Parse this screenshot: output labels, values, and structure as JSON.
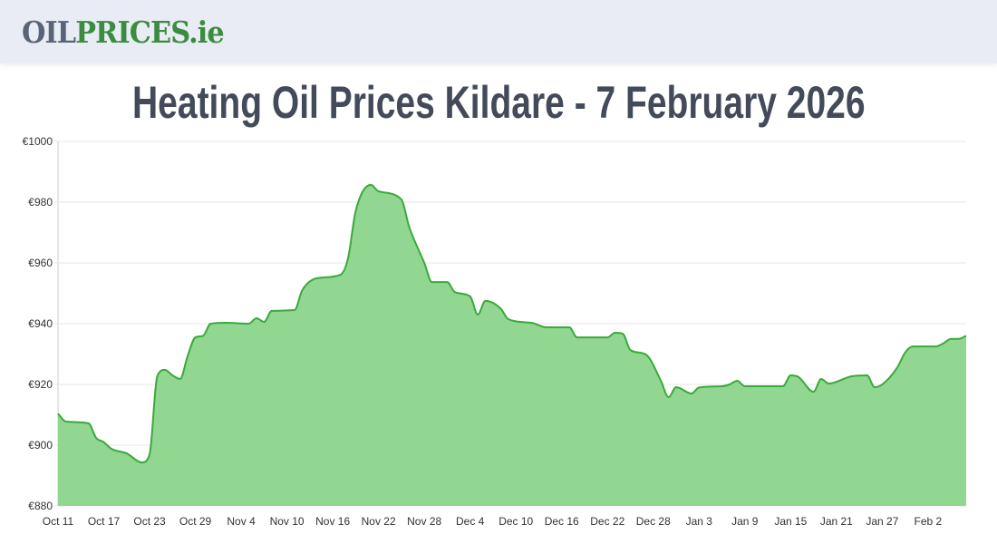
{
  "header": {
    "logo_part1": "OIL",
    "logo_part2": "PRICES.ie"
  },
  "title": "Heating Oil Prices Kildare - 7 February 2026",
  "colors": {
    "line": "#3aaa3a",
    "fill": "#91d691",
    "grid": "#e6e6e6"
  },
  "chart_data": {
    "type": "area",
    "title": "Heating Oil Prices Kildare - 7 February 2026",
    "xlabel": "",
    "ylabel": "",
    "ylim": [
      880,
      1000
    ],
    "xlim": [
      "2025-10-11",
      "2026-02-07"
    ],
    "grid": true,
    "y_ticks": [
      "€880",
      "€900",
      "€920",
      "€940",
      "€960",
      "€980",
      "€1000"
    ],
    "y_tick_values": [
      880,
      900,
      920,
      940,
      960,
      980,
      1000
    ],
    "x_ticks": [
      "Oct 11",
      "Oct 17",
      "Oct 23",
      "Oct 29",
      "Nov 4",
      "Nov 10",
      "Nov 16",
      "Nov 22",
      "Nov 28",
      "Dec 4",
      "Dec 10",
      "Dec 16",
      "Dec 22",
      "Dec 28",
      "Jan 3",
      "Jan 9",
      "Jan 15",
      "Jan 21",
      "Jan 27",
      "Feb 2"
    ],
    "x_tick_dates": [
      "2025-10-11",
      "2025-10-17",
      "2025-10-23",
      "2025-10-29",
      "2025-11-04",
      "2025-11-10",
      "2025-11-16",
      "2025-11-22",
      "2025-11-28",
      "2025-12-04",
      "2025-12-10",
      "2025-12-16",
      "2025-12-22",
      "2025-12-28",
      "2026-01-03",
      "2026-01-09",
      "2026-01-15",
      "2026-01-21",
      "2026-01-27",
      "2026-02-02"
    ],
    "points": [
      [
        "2025-10-11",
        910.4
      ],
      [
        "2025-10-12",
        907.8
      ],
      [
        "2025-10-15",
        907.2
      ],
      [
        "2025-10-16",
        902.4
      ],
      [
        "2025-10-17",
        901
      ],
      [
        "2025-10-18",
        898.8
      ],
      [
        "2025-10-20",
        897.3
      ],
      [
        "2025-10-22",
        894.3
      ],
      [
        "2025-10-23",
        897
      ],
      [
        "2025-10-24",
        922.7
      ],
      [
        "2025-10-25",
        924.8
      ],
      [
        "2025-10-26",
        923
      ],
      [
        "2025-10-27",
        921.8
      ],
      [
        "2025-10-28",
        929.5
      ],
      [
        "2025-10-29",
        935.5
      ],
      [
        "2025-10-30",
        936
      ],
      [
        "2025-10-31",
        940
      ],
      [
        "2025-11-02",
        940.3
      ],
      [
        "2025-11-05",
        940
      ],
      [
        "2025-11-06",
        941.8
      ],
      [
        "2025-11-07",
        940.6
      ],
      [
        "2025-11-08",
        944.2
      ],
      [
        "2025-11-11",
        944.5
      ],
      [
        "2025-11-12",
        951
      ],
      [
        "2025-11-14",
        955
      ],
      [
        "2025-11-17",
        956.1
      ],
      [
        "2025-11-18",
        961.5
      ],
      [
        "2025-11-19",
        977
      ],
      [
        "2025-11-21",
        985.7
      ],
      [
        "2025-11-22",
        983.6
      ],
      [
        "2025-11-25",
        980.9
      ],
      [
        "2025-11-26",
        972
      ],
      [
        "2025-11-28",
        960
      ],
      [
        "2025-11-29",
        953.7
      ],
      [
        "2025-12-01",
        953.7
      ],
      [
        "2025-12-02",
        950.4
      ],
      [
        "2025-12-04",
        949
      ],
      [
        "2025-12-05",
        943
      ],
      [
        "2025-12-06",
        947.5
      ],
      [
        "2025-12-08",
        945
      ],
      [
        "2025-12-09",
        941.5
      ],
      [
        "2025-12-12",
        940.3
      ],
      [
        "2025-12-14",
        938.8
      ],
      [
        "2025-12-17",
        938.8
      ],
      [
        "2025-12-18",
        935.5
      ],
      [
        "2025-12-22",
        935.5
      ],
      [
        "2025-12-23",
        937
      ],
      [
        "2025-12-24",
        936.7
      ],
      [
        "2025-12-25",
        931.3
      ],
      [
        "2025-12-27",
        929.9
      ],
      [
        "2025-12-29",
        921.2
      ],
      [
        "2025-12-30",
        915.8
      ],
      [
        "2025-12-31",
        919.1
      ],
      [
        "2026-01-02",
        917
      ],
      [
        "2026-01-03",
        919
      ],
      [
        "2026-01-06",
        919.4
      ],
      [
        "2026-01-07",
        920
      ],
      [
        "2026-01-08",
        921.2
      ],
      [
        "2026-01-09",
        919.4
      ],
      [
        "2026-01-14",
        919.4
      ],
      [
        "2026-01-15",
        923
      ],
      [
        "2026-01-16",
        922.5
      ],
      [
        "2026-01-18",
        917.6
      ],
      [
        "2026-01-19",
        921.8
      ],
      [
        "2026-01-20",
        920.3
      ],
      [
        "2026-01-23",
        922.7
      ],
      [
        "2026-01-25",
        923
      ],
      [
        "2026-01-26",
        919.1
      ],
      [
        "2026-01-27",
        920
      ],
      [
        "2026-01-29",
        925.7
      ],
      [
        "2026-01-30",
        930.5
      ],
      [
        "2026-01-31",
        932.5
      ],
      [
        "2026-02-03",
        932.5
      ],
      [
        "2026-02-04",
        933.5
      ],
      [
        "2026-02-05",
        935
      ],
      [
        "2026-02-06",
        935
      ],
      [
        "2026-02-07",
        936
      ]
    ]
  }
}
